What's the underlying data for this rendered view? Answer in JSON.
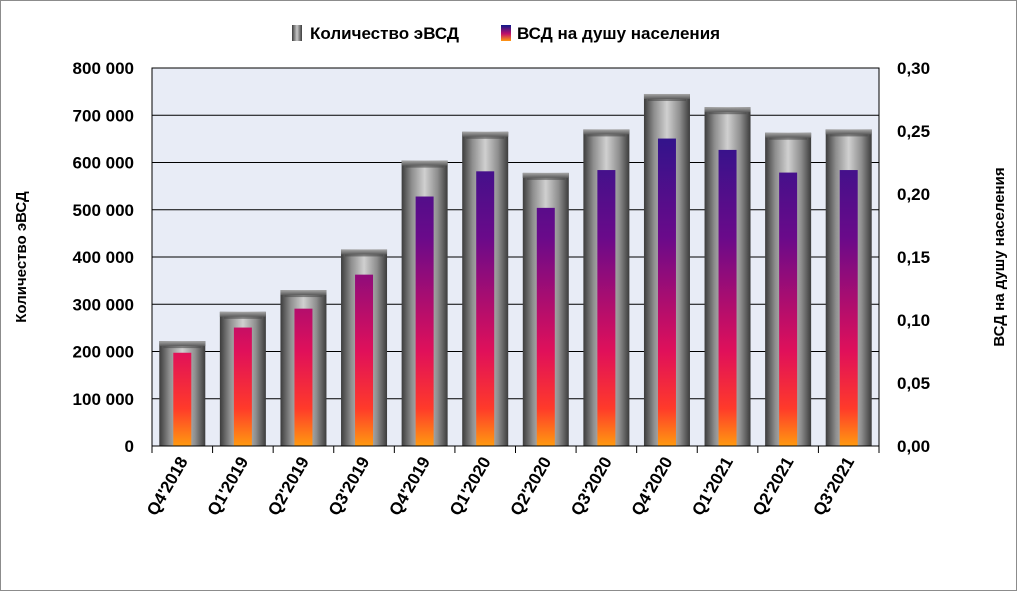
{
  "chart_data": {
    "type": "bar",
    "categories": [
      "Q4'2018",
      "Q1'2019",
      "Q2'2019",
      "Q3'2019",
      "Q4'2019",
      "Q1'2020",
      "Q2'2020",
      "Q3'2020",
      "Q4'2020",
      "Q1'2021",
      "Q2'2021",
      "Q3'2021"
    ],
    "series": [
      {
        "name": "Количество эВСД",
        "axis": "left",
        "color": "#7f7f7f",
        "values": [
          222000,
          284000,
          330000,
          416000,
          604000,
          665000,
          578000,
          670000,
          745000,
          717000,
          663000,
          670000
        ]
      },
      {
        "name": "ВСД на душу населения",
        "axis": "right",
        "color": "#2a1e8c",
        "values": [
          0.074,
          0.094,
          0.109,
          0.136,
          0.198,
          0.218,
          0.189,
          0.219,
          0.244,
          0.235,
          0.217,
          0.219
        ]
      }
    ],
    "ylabel": "Количество эВСД",
    "y2label": "ВСД на душу населения",
    "ylim": [
      0,
      800000
    ],
    "y2lim": [
      0,
      0.3
    ],
    "yticks": [
      "0",
      "100 000",
      "200 000",
      "300 000",
      "400 000",
      "500 000",
      "600 000",
      "700 000",
      "800 000"
    ],
    "y2ticks": [
      "0,00",
      "0,05",
      "0,10",
      "0,15",
      "0,20",
      "0,25",
      "0,30"
    ],
    "grid": true,
    "legend": "top-center"
  }
}
